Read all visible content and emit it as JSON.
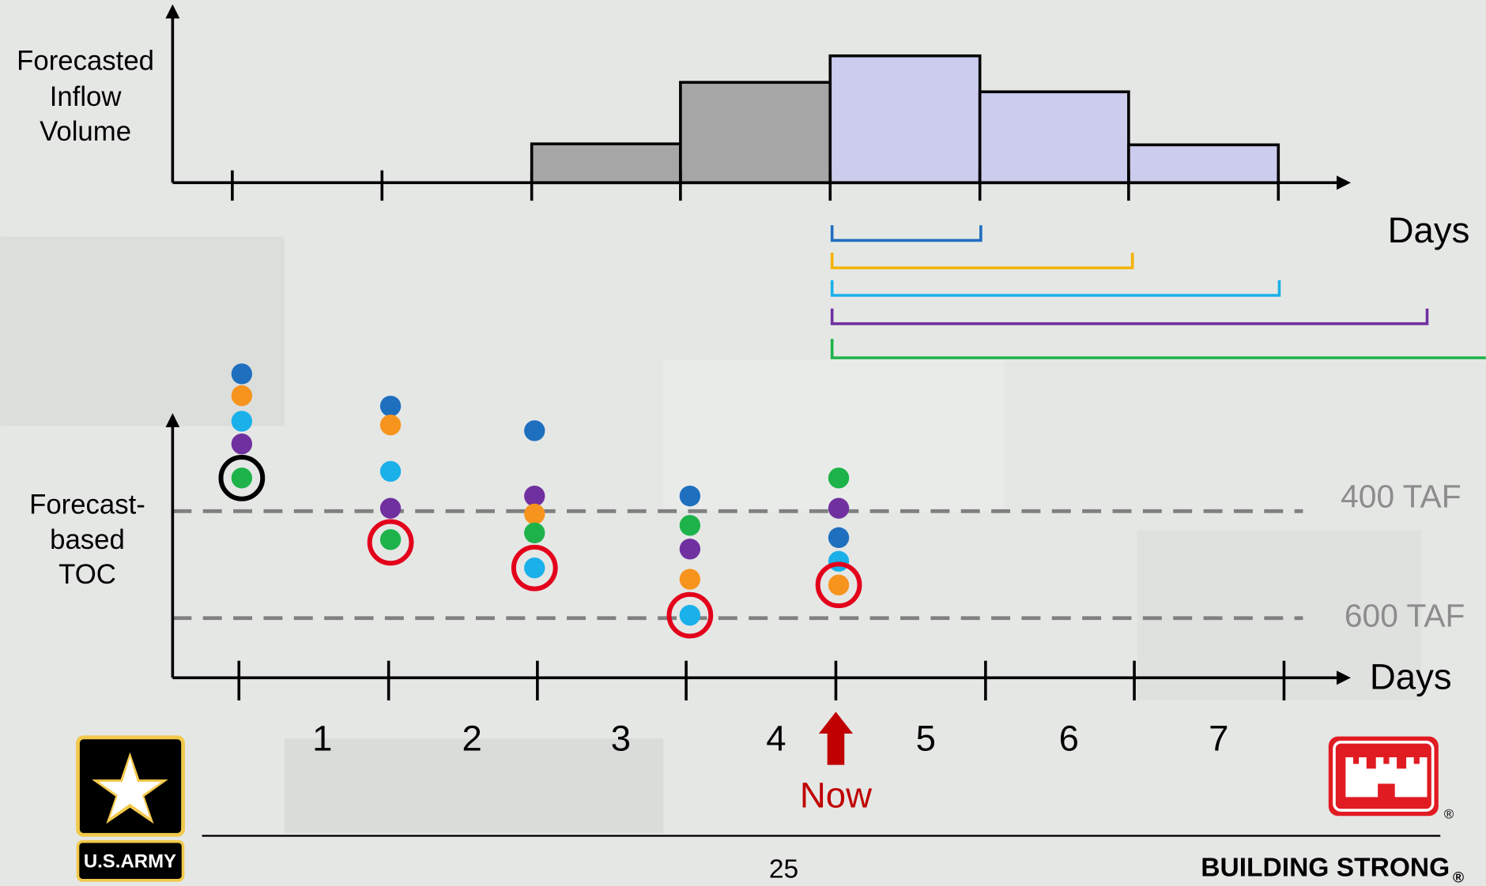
{
  "top_axis": {
    "label_lines": [
      "Forecasted",
      "Inflow",
      "Volume"
    ],
    "x_label": "Days"
  },
  "bottom_axis": {
    "label_lines": [
      "Forecast-",
      "based",
      "TOC"
    ],
    "x_label": "Days",
    "days": [
      "1",
      "2",
      "3",
      "4",
      "5",
      "6",
      "7"
    ]
  },
  "thresholds": [
    "400 TAF",
    "600 TAF"
  ],
  "marker": "Now",
  "footer": {
    "page_number": "25",
    "slogan": "BUILDING STRONG",
    "registered": "®",
    "army_logo": "U.S.ARMY"
  }
}
